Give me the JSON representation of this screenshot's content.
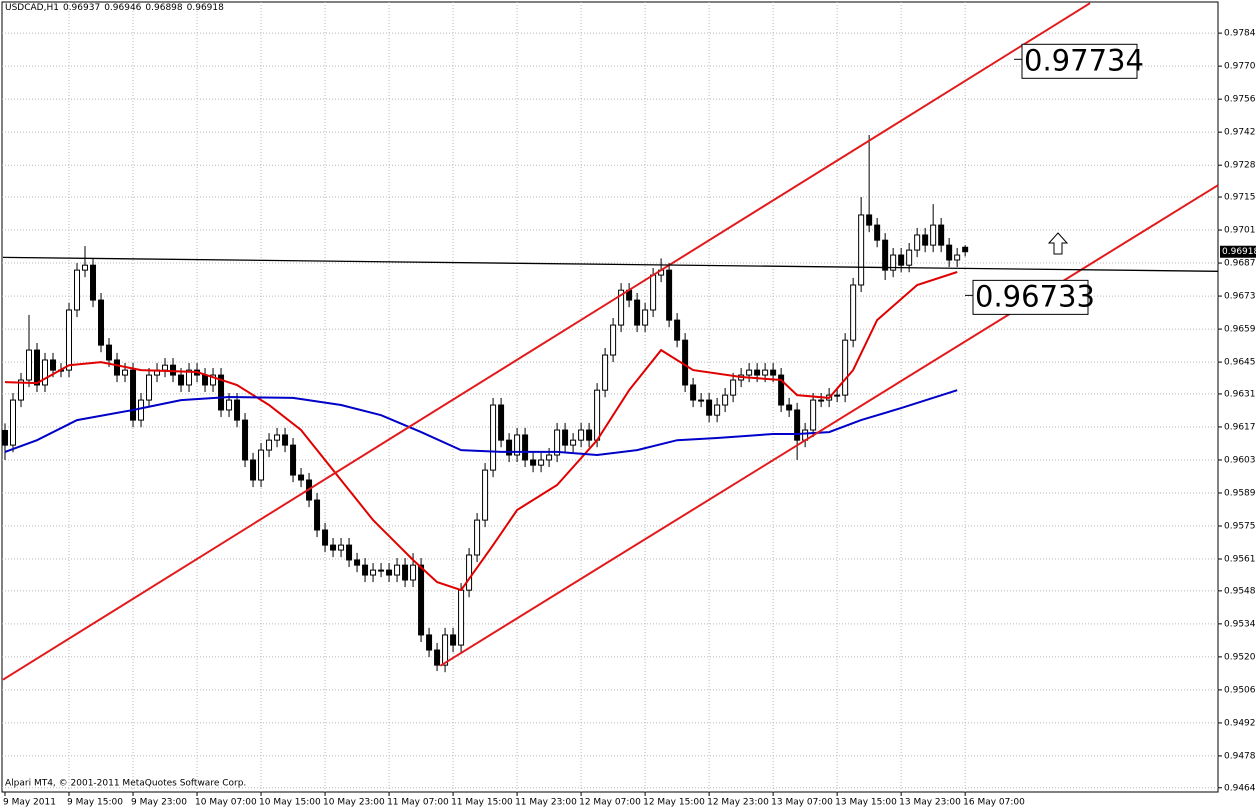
{
  "chart_data": {
    "type": "candlestick",
    "title": "USDCAD,H1",
    "footer": "Alpari MT4, © 2001-2011 MetaQuotes Software Corp.",
    "x": [
      0,
      1,
      2,
      3,
      4,
      5,
      6,
      7,
      8,
      9,
      10,
      11,
      12,
      13,
      14,
      15,
      16,
      17,
      18,
      19,
      20,
      21,
      22,
      23,
      24,
      25,
      26,
      27,
      28,
      29,
      30,
      31,
      32,
      33,
      34,
      35,
      36,
      37,
      38,
      39,
      40,
      41,
      42,
      43,
      44,
      45,
      46,
      47,
      48,
      49,
      50,
      51,
      52,
      53,
      54,
      55,
      56,
      57,
      58,
      59,
      60,
      61,
      62,
      63,
      64,
      65,
      66,
      67,
      68,
      69,
      70,
      71,
      72,
      73,
      74,
      75,
      76,
      77,
      78,
      79,
      80,
      81,
      82,
      83,
      84,
      85,
      86,
      87,
      88,
      89,
      90,
      91,
      92,
      93,
      94,
      95,
      96,
      97,
      98,
      99,
      100,
      101,
      102,
      103,
      104,
      105,
      106,
      107,
      108,
      109,
      110,
      111,
      112,
      113,
      114,
      115,
      116,
      117,
      118,
      119,
      120
    ],
    "open": [
      0.9616,
      0.96098,
      0.96289,
      0.96374,
      0.96501,
      0.96353,
      0.96459,
      0.96416,
      0.96416,
      0.96671,
      0.9684,
      0.96861,
      0.96713,
      0.96522,
      0.96459,
      0.96395,
      0.96416,
      0.96204,
      0.96289,
      0.96395,
      0.96416,
      0.96437,
      0.96395,
      0.96353,
      0.96416,
      0.96395,
      0.96353,
      0.96395,
      0.96247,
      0.96289,
      0.96204,
      0.96035,
      0.9595,
      0.96077,
      0.96119,
      0.96141,
      0.96098,
      0.95971,
      0.9595,
      0.95865,
      0.95738,
      0.95674,
      0.95653,
      0.95674,
      0.95611,
      0.95589,
      0.95547,
      0.95568,
      0.95568,
      0.95547,
      0.95589,
      0.95526,
      0.95589,
      0.95293,
      0.95229,
      0.95165,
      0.95293,
      0.9525,
      0.95483,
      0.95632,
      0.9578,
      0.95992,
      0.96268,
      0.96119,
      0.96056,
      0.96141,
      0.96035,
      0.96013,
      0.96035,
      0.96056,
      0.96162,
      0.96098,
      0.96119,
      0.96162,
      0.96119,
      0.96331,
      0.9648,
      0.96607,
      0.96755,
      0.96713,
      0.96607,
      0.96671,
      0.96819,
      0.9684,
      0.96628,
      0.96543,
      0.96353,
      0.96289,
      0.96289,
      0.96225,
      0.96268,
      0.9631,
      0.96374,
      0.96395,
      0.96416,
      0.96395,
      0.96416,
      0.96395,
      0.96268,
      0.96247,
      0.96119,
      0.96162,
      0.96289,
      0.96289,
      0.9631,
      0.9631,
      0.96543,
      0.96777,
      0.97074,
      0.97031,
      0.96967,
      0.9684,
      0.96904,
      0.96861,
      0.96925,
      0.96989,
      0.96946,
      0.97031,
      0.96946,
      0.96883,
      0.96937
    ],
    "high": [
      0.9619,
      0.96319,
      0.96404,
      0.9665,
      0.96531,
      0.96489,
      0.96489,
      0.96446,
      0.96701,
      0.9687,
      0.96942,
      0.96891,
      0.96743,
      0.96552,
      0.96489,
      0.96446,
      0.96446,
      0.96319,
      0.96425,
      0.96446,
      0.96467,
      0.96467,
      0.96425,
      0.96446,
      0.96446,
      0.96425,
      0.96425,
      0.96425,
      0.96319,
      0.96319,
      0.96234,
      0.96065,
      0.96107,
      0.96149,
      0.96171,
      0.96171,
      0.96128,
      0.96001,
      0.9598,
      0.95895,
      0.95768,
      0.95704,
      0.95704,
      0.95704,
      0.95641,
      0.95619,
      0.95598,
      0.95598,
      0.95598,
      0.95619,
      0.95619,
      0.9564,
      0.95619,
      0.95323,
      0.95259,
      0.95323,
      0.95323,
      0.95513,
      0.95662,
      0.9581,
      0.96022,
      0.96298,
      0.96298,
      0.96149,
      0.96171,
      0.96171,
      0.96065,
      0.96065,
      0.96086,
      0.96192,
      0.96192,
      0.96149,
      0.96192,
      0.96192,
      0.96361,
      0.9651,
      0.96637,
      0.96785,
      0.96785,
      0.96743,
      0.96701,
      0.96849,
      0.9689,
      0.9687,
      0.96658,
      0.96573,
      0.96383,
      0.96319,
      0.96319,
      0.96298,
      0.9634,
      0.96404,
      0.96425,
      0.96446,
      0.96446,
      0.96446,
      0.96446,
      0.96425,
      0.96298,
      0.96277,
      0.96192,
      0.96319,
      0.96319,
      0.9634,
      0.9634,
      0.96573,
      0.96807,
      0.9715,
      0.97413,
      0.97061,
      0.96997,
      0.96934,
      0.96934,
      0.96955,
      0.97019,
      0.97019,
      0.9712,
      0.97061,
      0.96976,
      0.96934,
      0.96946
    ],
    "low": [
      0.96035,
      0.96068,
      0.96259,
      0.96344,
      0.96323,
      0.96323,
      0.96386,
      0.96386,
      0.96386,
      0.96641,
      0.9681,
      0.96683,
      0.96492,
      0.96429,
      0.96365,
      0.96365,
      0.96174,
      0.96174,
      0.96259,
      0.96365,
      0.96386,
      0.96365,
      0.96323,
      0.96323,
      0.96365,
      0.96323,
      0.96323,
      0.96217,
      0.96217,
      0.96174,
      0.96005,
      0.9592,
      0.9592,
      0.96047,
      0.96089,
      0.96068,
      0.95941,
      0.9592,
      0.95835,
      0.95708,
      0.95644,
      0.95623,
      0.95623,
      0.95581,
      0.95559,
      0.95517,
      0.95517,
      0.95538,
      0.95517,
      0.95517,
      0.95496,
      0.95496,
      0.95263,
      0.95199,
      0.9514,
      0.95135,
      0.9522,
      0.9522,
      0.95453,
      0.95602,
      0.9575,
      0.95962,
      0.96089,
      0.96026,
      0.96026,
      0.96005,
      0.95983,
      0.95983,
      0.96005,
      0.96026,
      0.96068,
      0.96068,
      0.96089,
      0.96089,
      0.96089,
      0.96301,
      0.9645,
      0.96577,
      0.96683,
      0.96577,
      0.96577,
      0.96641,
      0.96789,
      0.96598,
      0.96513,
      0.96323,
      0.96259,
      0.96259,
      0.96195,
      0.96195,
      0.96238,
      0.9628,
      0.96344,
      0.96365,
      0.96365,
      0.96365,
      0.96365,
      0.96238,
      0.96217,
      0.96035,
      0.96089,
      0.96132,
      0.96259,
      0.96259,
      0.9628,
      0.9628,
      0.96513,
      0.96747,
      0.97001,
      0.96937,
      0.96798,
      0.9681,
      0.96831,
      0.96831,
      0.96895,
      0.96916,
      0.96916,
      0.96916,
      0.96853,
      0.96853,
      0.96898
    ],
    "close": [
      0.96098,
      0.96289,
      0.96374,
      0.96501,
      0.96353,
      0.96459,
      0.96416,
      0.96416,
      0.96671,
      0.9684,
      0.96861,
      0.96713,
      0.96522,
      0.96459,
      0.96395,
      0.96416,
      0.96204,
      0.96289,
      0.96395,
      0.96416,
      0.96437,
      0.96395,
      0.96353,
      0.96416,
      0.96395,
      0.96353,
      0.96395,
      0.96247,
      0.96289,
      0.96204,
      0.96035,
      0.9595,
      0.96077,
      0.96119,
      0.96141,
      0.96098,
      0.95971,
      0.9595,
      0.95865,
      0.95738,
      0.95674,
      0.95653,
      0.95674,
      0.95611,
      0.95589,
      0.95547,
      0.95568,
      0.95568,
      0.95547,
      0.95589,
      0.95526,
      0.95589,
      0.95293,
      0.95229,
      0.95165,
      0.95293,
      0.9525,
      0.95483,
      0.95632,
      0.9578,
      0.95992,
      0.96268,
      0.96119,
      0.96056,
      0.96141,
      0.96035,
      0.96013,
      0.96035,
      0.96056,
      0.96162,
      0.96098,
      0.96119,
      0.96162,
      0.96119,
      0.96331,
      0.9648,
      0.96607,
      0.96755,
      0.96713,
      0.96607,
      0.96671,
      0.96819,
      0.9684,
      0.96628,
      0.96543,
      0.96353,
      0.96289,
      0.96289,
      0.96225,
      0.96268,
      0.9631,
      0.96374,
      0.96395,
      0.96416,
      0.96395,
      0.96416,
      0.96395,
      0.96268,
      0.96247,
      0.96119,
      0.96162,
      0.96289,
      0.96289,
      0.9631,
      0.9631,
      0.96543,
      0.96777,
      0.97074,
      0.97031,
      0.96967,
      0.9684,
      0.96904,
      0.96861,
      0.96925,
      0.96989,
      0.96946,
      0.97031,
      0.96946,
      0.96883,
      0.96904,
      0.96918
    ],
    "series": [
      {
        "color": "#e00000",
        "x": [
          0,
          4,
          8,
          12,
          17,
          24,
          29,
          33,
          37,
          41,
          46,
          51,
          54,
          57,
          61,
          64,
          69,
          74,
          78,
          82,
          86,
          92,
          97,
          99,
          103,
          106,
          109,
          114,
          119
        ],
        "values": [
          0.96365,
          0.96361,
          0.96437,
          0.9645,
          0.96416,
          0.96408,
          0.96353,
          0.96268,
          0.96162,
          0.95992,
          0.9578,
          0.95611,
          0.95517,
          0.95483,
          0.95674,
          0.95823,
          0.95929,
          0.96119,
          0.96331,
          0.96501,
          0.96416,
          0.96387,
          0.96374,
          0.9631,
          0.96298,
          0.96416,
          0.96628,
          0.96777,
          0.96832
        ]
      },
      {
        "color": "#0000c8",
        "x": [
          0,
          4,
          9,
          16,
          22,
          28,
          36,
          42,
          47,
          52,
          57,
          62,
          69,
          74,
          79,
          84,
          89,
          96,
          99,
          103,
          107,
          112,
          119
        ],
        "values": [
          0.96069,
          0.96119,
          0.96204,
          0.96247,
          0.96289,
          0.96302,
          0.96298,
          0.96268,
          0.96225,
          0.96153,
          0.96077,
          0.96069,
          0.96069,
          0.96056,
          0.96077,
          0.96119,
          0.96128,
          0.96145,
          0.96145,
          0.96153,
          0.96204,
          0.96255,
          0.96331
        ]
      }
    ],
    "trendlines": [
      {
        "color": "#e31a1c",
        "x": [
          -0.25,
          135.6
        ],
        "values": [
          0.95103,
          0.97972
        ]
      },
      {
        "color": "#e31a1c",
        "x": [
          54.4,
          151.6
        ],
        "values": [
          0.95162,
          0.972
        ]
      },
      {
        "color": "#000000",
        "x": [
          -0.25,
          151.6
        ],
        "values": [
          0.96894,
          0.96835
        ]
      }
    ],
    "annotations": [
      0.97734,
      0.96733
    ],
    "xlim": [
      -0.375,
      151.6
    ],
    "ylim": [
      0.94627,
      0.97977
    ],
    "xticks": [
      {
        "value": 0,
        "label": "9 May 2011"
      },
      {
        "value": 8,
        "label": "9 May 15:00"
      },
      {
        "value": 16,
        "label": "9 May 23:00"
      },
      {
        "value": 24,
        "label": "10 May 07:00"
      },
      {
        "value": 32,
        "label": "10 May 15:00"
      },
      {
        "value": 40,
        "label": "10 May 23:00"
      },
      {
        "value": 48,
        "label": "11 May 07:00"
      },
      {
        "value": 56,
        "label": "11 May 15:00"
      },
      {
        "value": 64,
        "label": "11 May 23:00"
      },
      {
        "value": 72,
        "label": "12 May 07:00"
      },
      {
        "value": 80,
        "label": "12 May 15:00"
      },
      {
        "value": 88,
        "label": "12 May 23:00"
      },
      {
        "value": 96,
        "label": "13 May 07:00"
      },
      {
        "value": 104,
        "label": "13 May 15:00"
      },
      {
        "value": 112,
        "label": "13 May 23:00"
      },
      {
        "value": 120,
        "label": "16 May 07:00"
      }
    ],
    "yticks": [
      0.97845,
      0.97705,
      0.97565,
      0.97425,
      0.97285,
      {
        "value": 0.9715,
        "label": "0.97150"
      },
      {
        "value": 0.9701,
        "label": "0.97010"
      },
      {
        "value": 0.9687,
        "label": "0.96870"
      },
      {
        "value": 0.9673,
        "label": "0.96730"
      },
      {
        "value": 0.9659,
        "label": "0.96590"
      },
      {
        "value": 0.9645,
        "label": "0.96450"
      },
      0.96315,
      0.96175,
      0.96035,
      0.95895,
      0.95755,
      0.95615,
      {
        "value": 0.9548,
        "label": "0.95480"
      },
      {
        "value": 0.9534,
        "label": "0.95340"
      },
      {
        "value": 0.952,
        "label": "0.95200"
      },
      {
        "value": 0.9506,
        "label": "0.95060"
      },
      {
        "value": 0.9492,
        "label": "0.94920"
      },
      {
        "value": 0.9478,
        "label": "0.94780"
      },
      0.94645
    ],
    "grid": true
  }
}
